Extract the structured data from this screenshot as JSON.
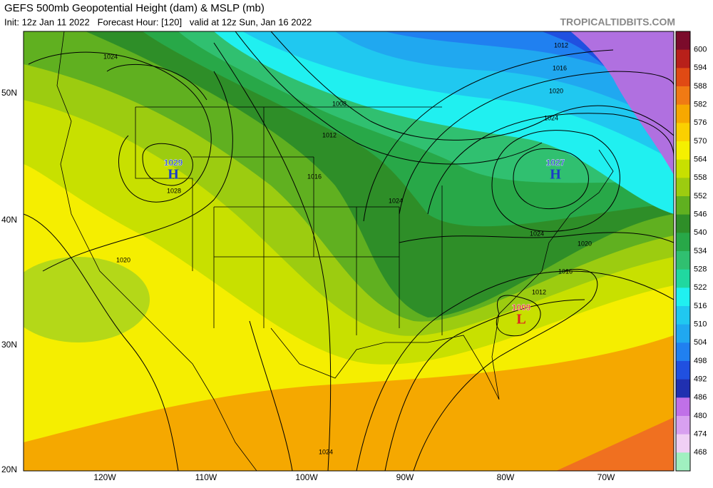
{
  "header": {
    "title": "GEFS 500mb Geopotential Height (dam) & MSLP (mb)",
    "subtitle": "Init: 12z Jan 11 2022   Forecast Hour: [120]   valid at 12z Sun, Jan 16 2022",
    "brand": "TROPICALTIDBITS.COM"
  },
  "map": {
    "latitude_labels": [
      "50N",
      "40N",
      "30N",
      "20N"
    ],
    "longitude_labels": [
      "120W",
      "110W",
      "100W",
      "90W",
      "80W",
      "70W"
    ],
    "centers": [
      {
        "symbol": "H",
        "pressure": "1029"
      },
      {
        "symbol": "H",
        "pressure": "1027"
      },
      {
        "symbol": "L",
        "pressure": "1009"
      }
    ],
    "isobar_labels": [
      "1024",
      "1008",
      "1012",
      "1016",
      "1028",
      "1024",
      "1020",
      "1012",
      "1016",
      "1020",
      "1024",
      "1024",
      "1020",
      "1016",
      "1012",
      "1024"
    ]
  },
  "colorbar": {
    "levels": [
      600,
      594,
      588,
      582,
      576,
      570,
      564,
      558,
      552,
      546,
      540,
      534,
      528,
      522,
      516,
      510,
      504,
      498,
      492,
      486,
      480,
      474,
      468
    ]
  }
}
